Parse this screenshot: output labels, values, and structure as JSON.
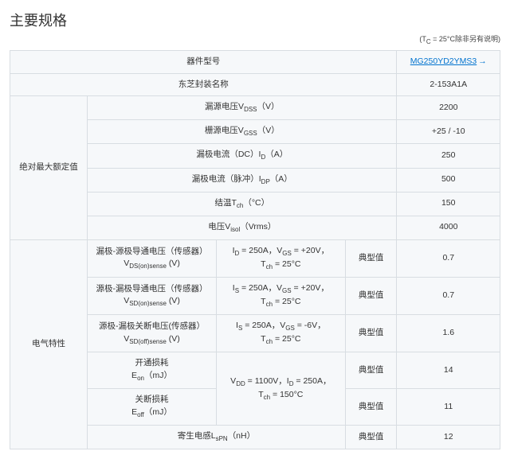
{
  "page": {
    "title": "主要规格",
    "note_prefix": "(T",
    "note_sub": "C",
    "note_suffix": " = 25°C除非另有说明)"
  },
  "header": {
    "part_label": "器件型号",
    "part_link": "MG250YD2YMS3",
    "pkg_label": "东芝封装名称",
    "pkg_value": "2-153A1A"
  },
  "abs": {
    "section": "绝对最大额定值",
    "rows": [
      {
        "label_pre": "漏源电压V",
        "label_sub": "DSS",
        "unit": "（V）",
        "value": "2200"
      },
      {
        "label_pre": "栅源电压V",
        "label_sub": "GSS",
        "unit": "（V）",
        "value": "+25 / -10"
      },
      {
        "label_pre": "漏极电流（DC）I",
        "label_sub": "D",
        "unit": "（A）",
        "value": "250"
      },
      {
        "label_pre": "漏极电流（脉冲）I",
        "label_sub": "DP",
        "unit": "（A）",
        "value": "500"
      },
      {
        "label_pre": "结温T",
        "label_sub": "ch",
        "unit": "（°C）",
        "value": "150"
      },
      {
        "label_pre": "电压V",
        "label_sub": "isol",
        "unit": "（Vrms）",
        "value": "4000"
      }
    ]
  },
  "elec": {
    "section": "电气特性",
    "typ_label": "典型值",
    "rows": [
      {
        "name": "漏极-源极导通电压（传感器）",
        "sym_pre": "V",
        "sym_sub": "DS(on)sense",
        "sym_unit": "(V)",
        "cond": "I<sub>D</sub> = 250A，V<sub>GS</sub> = +20V，<br>T<sub>ch</sub> = 25°C",
        "value": "0.7"
      },
      {
        "name": "源极-漏极导通电压（传感器）",
        "sym_pre": "V",
        "sym_sub": "SD(on)sense",
        "sym_unit": "(V)",
        "cond": "I<sub>S</sub> = 250A，V<sub>GS</sub> = +20V，<br>T<sub>ch</sub> = 25°C",
        "value": "0.7"
      },
      {
        "name": "源极-漏极关断电压(传感器）",
        "sym_pre": "V",
        "sym_sub": "SD(off)sense",
        "sym_unit": "(V)",
        "cond": "I<sub>S</sub> = 250A，V<sub>GS</sub> = -6V，<br>T<sub>ch</sub> = 25°C",
        "value": "1.6"
      },
      {
        "name": "开通损耗",
        "sym_pre": "E",
        "sym_sub": "on",
        "sym_unit": "（mJ）",
        "cond_shared": "V<sub>DD</sub> = 1100V，I<sub>D</sub> = 250A，<br>T<sub>ch</sub> = 150°C",
        "value": "14"
      },
      {
        "name": "关断损耗",
        "sym_pre": "E",
        "sym_sub": "off",
        "sym_unit": "（mJ）",
        "value": "11"
      },
      {
        "name_pre": "寄生电感L",
        "name_sub": "sPN",
        "name_unit": "（nH）",
        "value": "12"
      }
    ]
  }
}
